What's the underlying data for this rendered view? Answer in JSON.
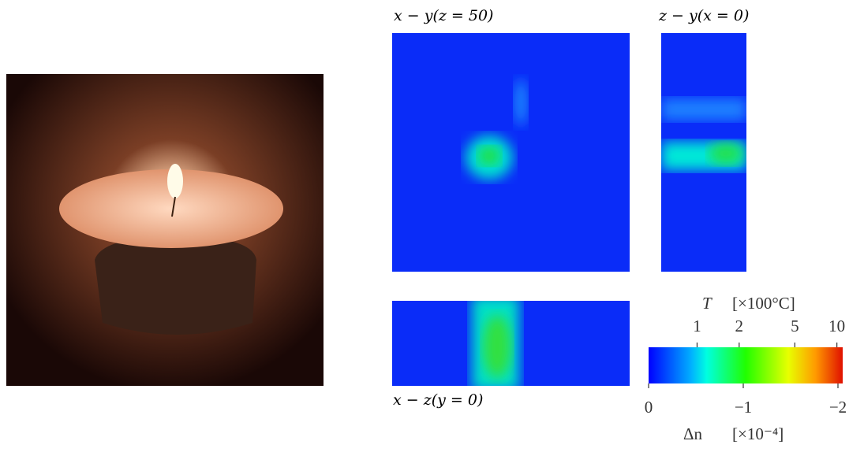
{
  "panels": {
    "xy": {
      "label": "x − y(z = 50)"
    },
    "zy": {
      "label": "z − y(x = 0)"
    },
    "xz": {
      "label": "x − z(y = 0)"
    }
  },
  "colorbar": {
    "top": {
      "symbol": "T",
      "unit": "[×100°C]",
      "scale": "log",
      "lim": [
        0.45,
        11
      ],
      "ticks": [
        1,
        2,
        5,
        10
      ]
    },
    "bottom": {
      "symbol": "Δn",
      "unit": "[×10⁻⁴]",
      "lim": [
        0,
        -2.05
      ],
      "ticks": [
        0,
        {
          "value": -1,
          "label": "−1"
        },
        {
          "value": -2,
          "label": "−2"
        }
      ]
    }
  }
}
